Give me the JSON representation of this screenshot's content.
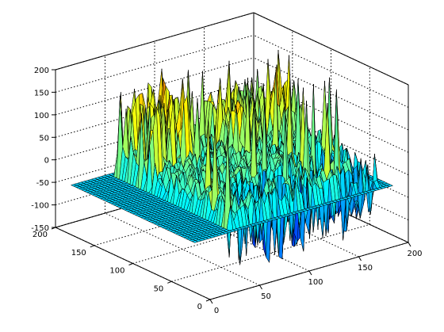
{
  "chart_data": {
    "type": "surface3d",
    "title": "",
    "xlabel": "",
    "ylabel": "",
    "zlabel": "",
    "x_ticks": [
      0,
      50,
      100,
      150,
      200
    ],
    "y_ticks": [
      0,
      50,
      100,
      150,
      200
    ],
    "z_ticks": [
      -150,
      -100,
      -50,
      0,
      50,
      100,
      150,
      200
    ],
    "x_range": [
      0,
      200
    ],
    "y_range": [
      0,
      200
    ],
    "z_range": [
      -150,
      200
    ],
    "grid": true,
    "box": true,
    "colormap": "jet",
    "edge_color": "#000000",
    "surface_extent": {
      "x": [
        0,
        200
      ],
      "y": [
        20,
        180
      ]
    },
    "surface_features": {
      "base_level": -40,
      "plateau_level": 0,
      "plateau_region": {
        "x": [
          40,
          190
        ],
        "y": [
          25,
          175
        ]
      },
      "spike_peak": 150,
      "valley_min": -150
    }
  }
}
